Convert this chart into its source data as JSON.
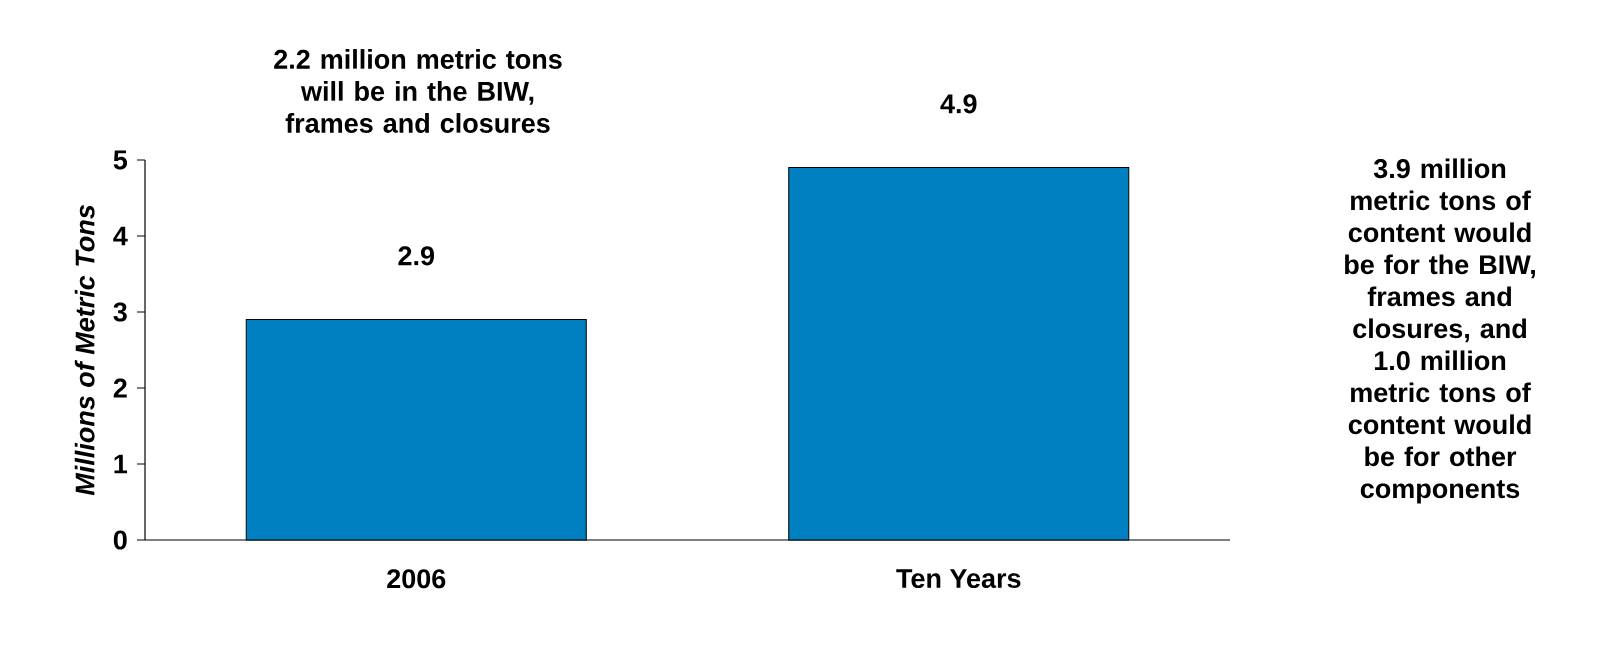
{
  "chart_data": {
    "type": "bar",
    "categories": [
      "2006",
      "Ten Years"
    ],
    "values": [
      2.9,
      4.9
    ],
    "color": "#0080c0",
    "ylim": [
      0,
      5
    ],
    "yticks": [
      0,
      1,
      2,
      3,
      4,
      5
    ],
    "ylabel": "Millions of Metric Tons",
    "data_labels": true,
    "annotations": [
      "2.2 million metric tons will be in the BIW, frames and closures",
      "3.9 million metric tons of content would be for the BIW, frames and closures, and 1.0 million metric tons of content would be for other components"
    ]
  }
}
